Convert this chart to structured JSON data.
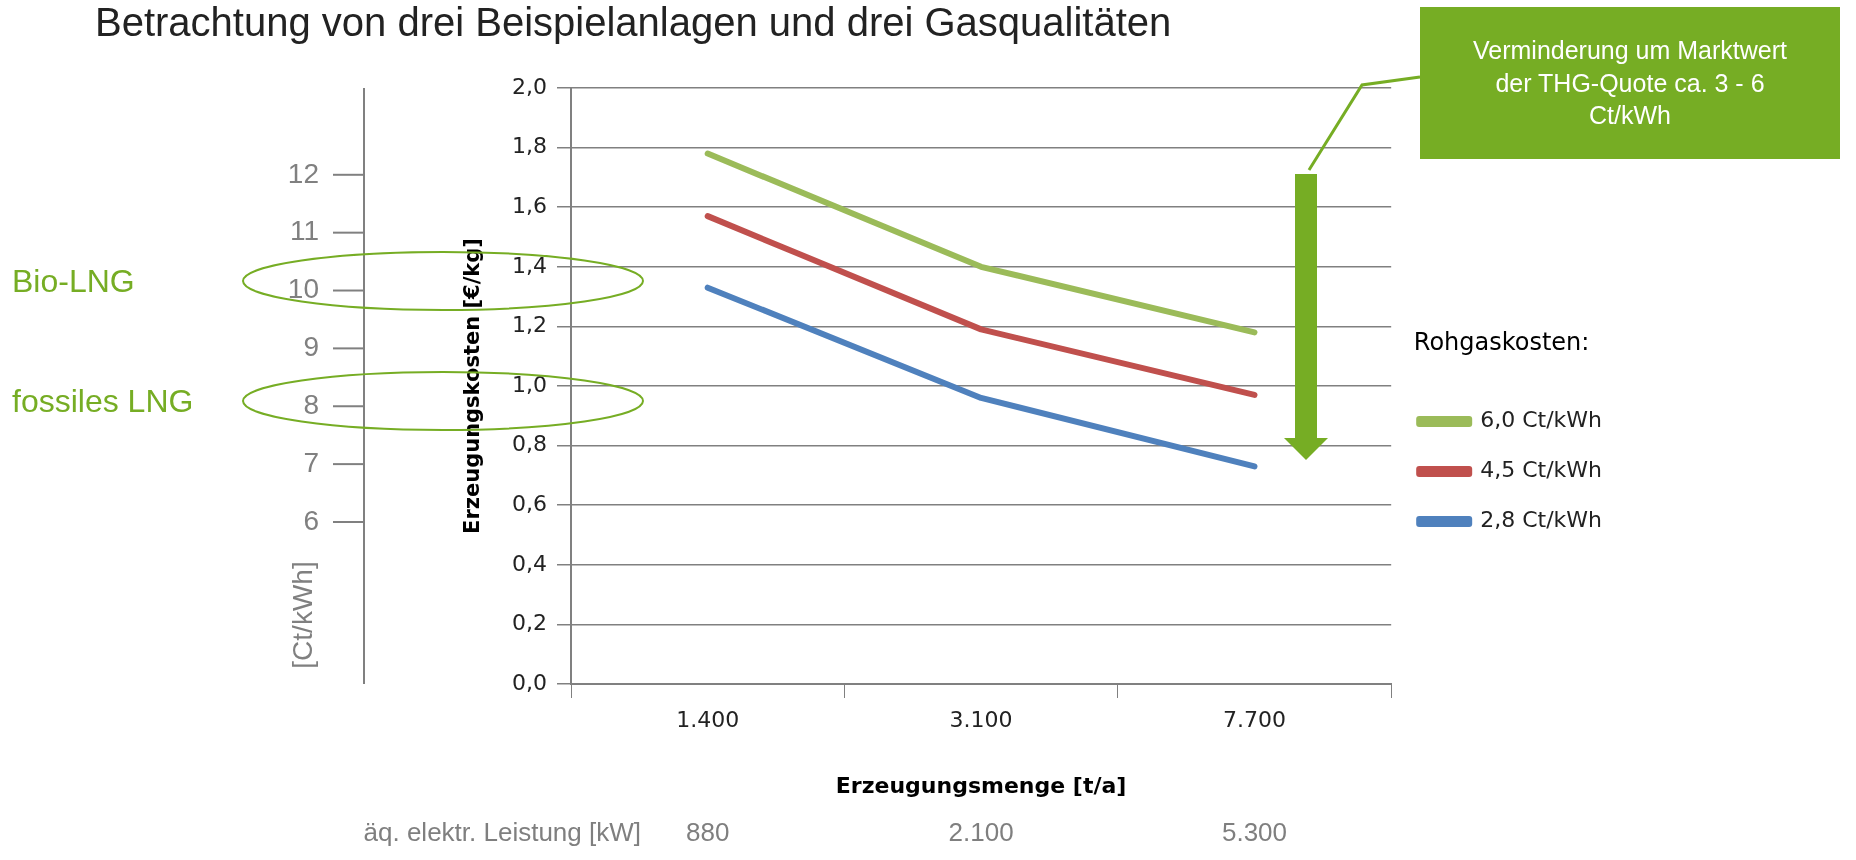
{
  "chart_data": {
    "type": "line",
    "title": "Betrachtung von drei Beispielanlagen und drei Gasqualitäten",
    "xlabel": "Erzeugungsmenge [t/a]",
    "ylabel": "Erzeugungskosten [€/kg]",
    "y2label": "[Ct/kWh]",
    "legend_title": "Rohgaskosten:",
    "categories": [
      "1.400",
      "3.100",
      "7.700"
    ],
    "series": [
      {
        "name": "6,0 Ct/kWh",
        "color": "#9bbb59",
        "values": [
          1.78,
          1.4,
          1.18
        ]
      },
      {
        "name": "4,5 Ct/kWh",
        "color": "#c0504d",
        "values": [
          1.57,
          1.19,
          0.97
        ]
      },
      {
        "name": "2,8 Ct/kWh",
        "color": "#4f81bd",
        "values": [
          1.33,
          0.96,
          0.73
        ]
      }
    ],
    "ylim": [
      0,
      2
    ],
    "yticks": [
      {
        "value": 0,
        "label": "0,0"
      },
      {
        "value": 0.2,
        "label": "0,2"
      },
      {
        "value": 0.4,
        "label": "0,4"
      },
      {
        "value": 0.6,
        "label": "0,6"
      },
      {
        "value": 0.8,
        "label": "0,8"
      },
      {
        "value": 1,
        "label": "1,0"
      },
      {
        "value": 1.2,
        "label": "1,2"
      },
      {
        "value": 1.4,
        "label": "1,4"
      },
      {
        "value": 1.6,
        "label": "1,6"
      },
      {
        "value": 1.8,
        "label": "1,8"
      },
      {
        "value": 2,
        "label": "2,0"
      }
    ],
    "y2lim": [
      3.2,
      13.5
    ],
    "y2ticks": [
      6,
      7,
      8,
      9,
      10,
      11,
      12
    ],
    "grid": "y",
    "legend": "right",
    "marker": "none",
    "line_style": "solid",
    "annotations": [
      "äq. elektr. Leistung [kW]",
      "Verminderung um Marktwert der THG-Quote ca. 3 - 6 Ct/kWh",
      "880",
      "2.100",
      "5.300",
      "Bio-LNG",
      "fossiles LNG"
    ]
  }
}
